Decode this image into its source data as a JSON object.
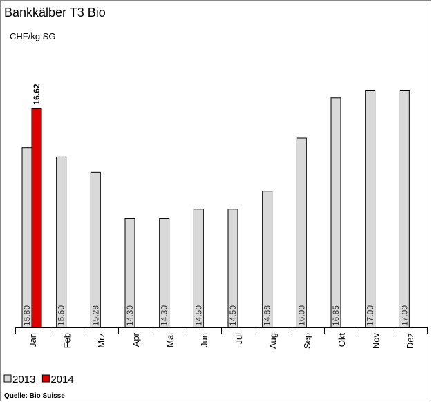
{
  "chart_data": {
    "type": "bar",
    "title": "Bankkälber T3 Bio",
    "subtitle": "CHF/kg SG",
    "categories": [
      "Jan",
      "Feb",
      "Mrz",
      "Apr",
      "Mai",
      "Jun",
      "Jul",
      "Aug",
      "Sep",
      "Okt",
      "Nov",
      "Dez"
    ],
    "series": [
      {
        "name": "2013",
        "color": "#d9d9d9",
        "values": [
          15.8,
          15.6,
          15.28,
          14.3,
          14.3,
          14.5,
          14.5,
          14.88,
          16.0,
          16.85,
          17.0,
          17.0
        ],
        "value_labels": [
          "15.80",
          "15.60",
          "15.28",
          "14.30",
          "14.30",
          "14.50",
          "14.50",
          "14.88",
          "16.00",
          "16.85",
          "17.00",
          "17.00"
        ]
      },
      {
        "name": "2014",
        "color": "#e00000",
        "values": [
          16.62,
          null,
          null,
          null,
          null,
          null,
          null,
          null,
          null,
          null,
          null,
          null
        ]
      }
    ],
    "ylim": [
      12,
      18
    ],
    "source": "Quelle: Bio Suisse"
  }
}
